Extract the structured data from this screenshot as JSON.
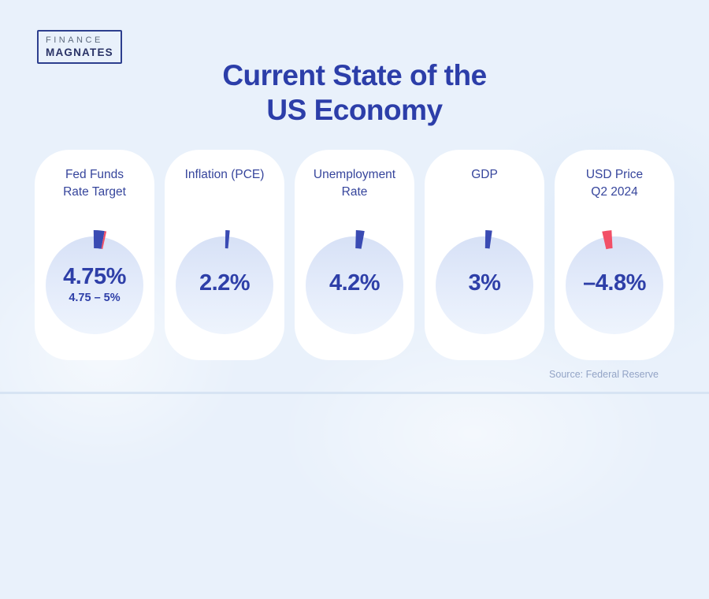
{
  "page": {
    "background_color": "#e9f1fb",
    "card_color": "#ffffff",
    "title_color": "#2c3ea9",
    "value_color": "#2e3fa8",
    "accent_blue": "#3a4bb3",
    "accent_red": "#f25067",
    "title_line1": "Current State of the",
    "title_line2": "US Economy",
    "source": "Source: Federal Reserve"
  },
  "logo": {
    "line1": "FINANCE",
    "line2": "MAGNATES"
  },
  "cards": [
    {
      "label_line1": "Fed Funds",
      "label_line2": "Rate Target",
      "value": "4.75%",
      "subvalue": "4.75 – 5%",
      "wedges": [
        {
          "color": "#3a4bb3",
          "from": -1,
          "to": 10.5
        },
        {
          "color": "#f25067",
          "from": 10.5,
          "to": 12.5
        }
      ]
    },
    {
      "label_line1": "Inflation (PCE)",
      "label_line2": "",
      "value": "2.2%",
      "subvalue": "",
      "wedges": [
        {
          "color": "#3a4bb3",
          "from": 1,
          "to": 5.5
        }
      ]
    },
    {
      "label_line1": "Unemployment",
      "label_line2": "Rate",
      "value": "4.2%",
      "subvalue": "",
      "wedges": [
        {
          "color": "#3a4bb3",
          "from": 1.5,
          "to": 10.5
        }
      ]
    },
    {
      "label_line1": "GDP",
      "label_line2": "",
      "value": "3%",
      "subvalue": "",
      "wedges": [
        {
          "color": "#3a4bb3",
          "from": 1,
          "to": 8
        }
      ]
    },
    {
      "label_line1": "USD Price",
      "label_line2": "Q2 2024",
      "value": "–4.8%",
      "subvalue": "",
      "wedges": [
        {
          "color": "#f25067",
          "from": -13,
          "to": -3
        }
      ]
    }
  ],
  "chart_data": {
    "type": "pie",
    "subtype": "gauge-cards",
    "title": "Current State of the US Economy",
    "categories": [
      "Fed Funds Rate Target",
      "Inflation (PCE)",
      "Unemployment Rate",
      "GDP",
      "USD Price Q2 2024"
    ],
    "values": [
      4.75,
      2.2,
      4.2,
      3,
      -4.8
    ],
    "value_labels": [
      "4.75%",
      "2.2%",
      "4.2%",
      "3%",
      "–4.8%"
    ],
    "sub_labels": [
      "4.75 – 5%",
      "",
      "",
      "",
      ""
    ],
    "marker_colors": [
      "#3a4bb3",
      "#3a4bb3",
      "#3a4bb3",
      "#3a4bb3",
      "#f25067"
    ],
    "source": "Source: Federal Reserve",
    "legend_position": "none",
    "grid": false
  }
}
